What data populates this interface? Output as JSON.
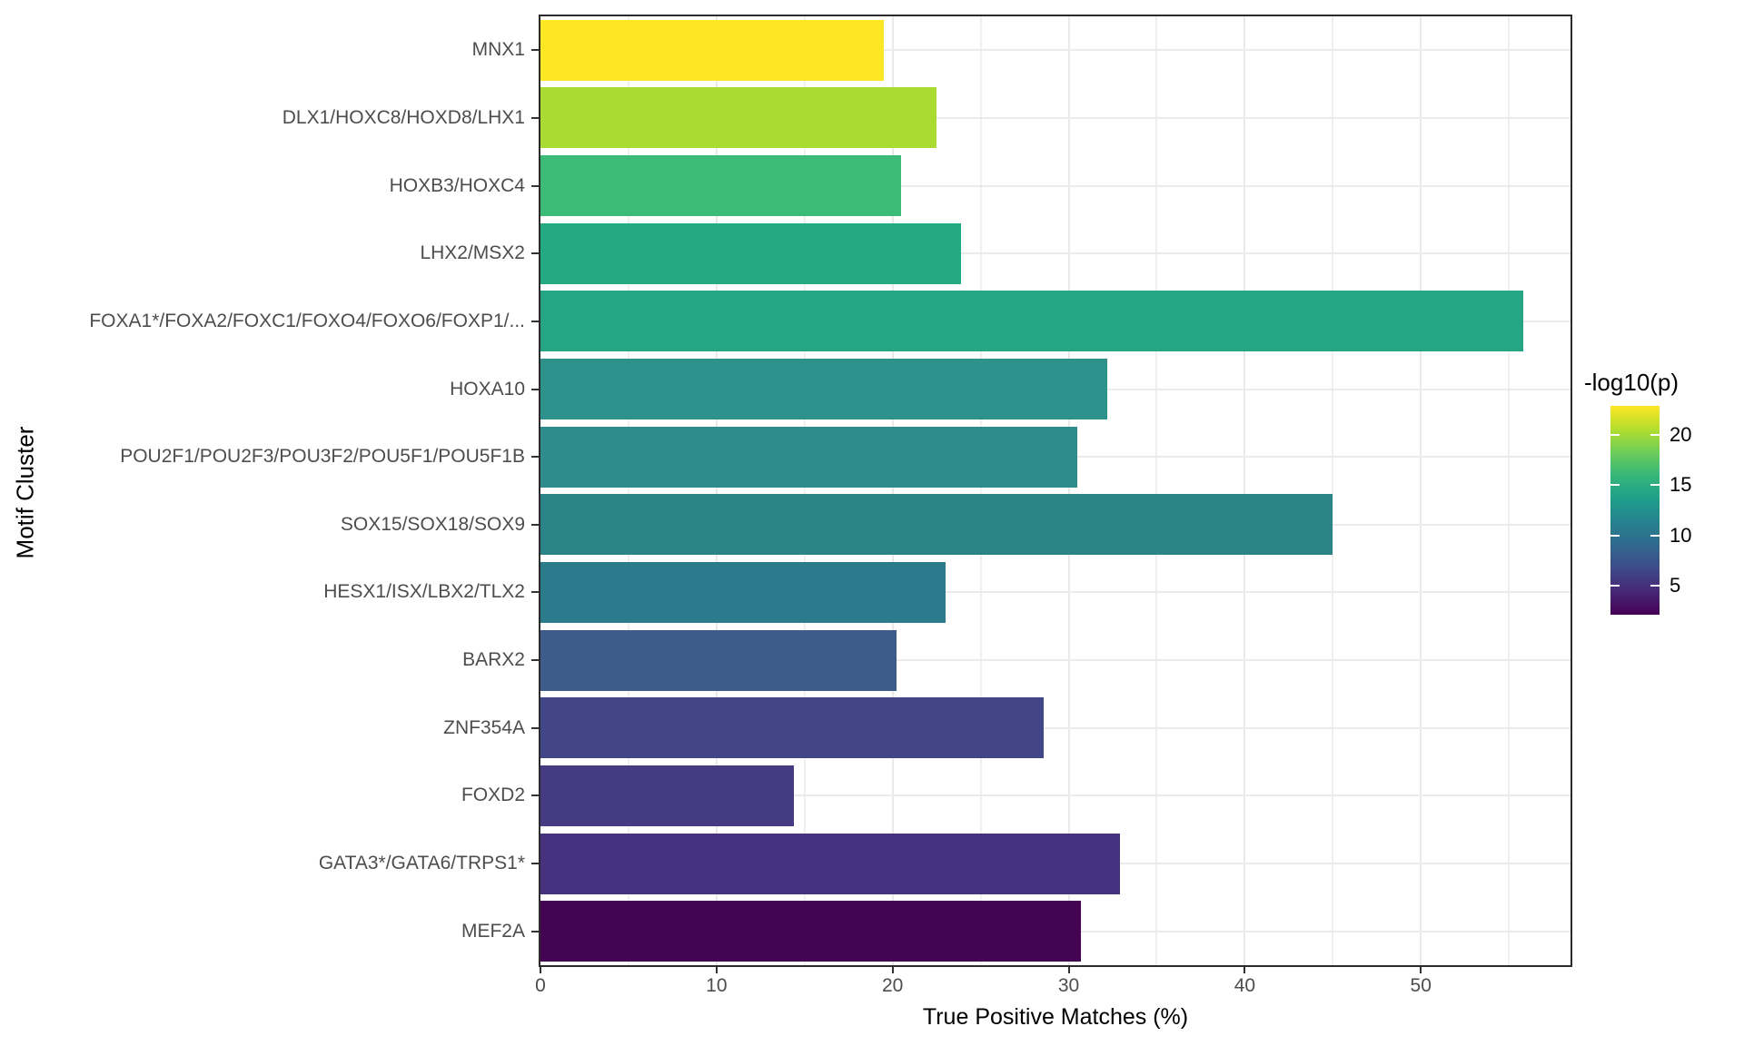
{
  "chart_data": {
    "type": "bar",
    "orientation": "horizontal",
    "title": "",
    "xlabel": "True Positive Matches (%)",
    "ylabel": "Motif Cluster",
    "xlim": [
      0,
      58.5
    ],
    "x_ticks": [
      0,
      10,
      20,
      30,
      40,
      50
    ],
    "x_grid_major": [
      10,
      20,
      30,
      40,
      50
    ],
    "x_grid_minor": [
      5,
      15,
      25,
      35,
      45,
      55
    ],
    "grid": "light gray vertical major+minor, horizontal at category centers",
    "legend_position": "right",
    "categories": [
      "MNX1",
      "DLX1/HOXC8/HOXD8/LHX1",
      "HOXB3/HOXC4",
      "LHX2/MSX2",
      "FOXA1*/FOXA2/FOXC1/FOXO4/FOXO6/FOXP1/...",
      "HOXA10",
      "POU2F1/POU2F3/POU3F2/POU5F1/POU5F1B",
      "SOX15/SOX18/SOX9",
      "HESX1/ISX/LBX2/TLX2",
      "BARX2",
      "ZNF354A",
      "FOXD2",
      "GATA3*/GATA6/TRPS1*",
      "MEF2A"
    ],
    "values": [
      19.5,
      22.5,
      20.5,
      23.9,
      55.8,
      32.2,
      30.5,
      45.0,
      23.0,
      20.2,
      28.6,
      14.4,
      32.9,
      30.7
    ],
    "bar_colors": [
      "#FDE725",
      "#A9DB33",
      "#3BBB75",
      "#24AA83",
      "#25A584",
      "#2D918C",
      "#2E8C8D",
      "#2A8386",
      "#2C7B8C",
      "#3D5C8A",
      "#424586",
      "#453B82",
      "#46327E",
      "#430553"
    ],
    "color_metric": "-log10(p)",
    "log10p_estimates": [
      23,
      20,
      16,
      15,
      14.5,
      13,
      12.5,
      11.8,
      11,
      8.5,
      6.8,
      6,
      5,
      2.2
    ],
    "legend": {
      "title": "-log10(p)",
      "ticks": [
        20,
        15,
        10,
        5
      ],
      "range_bottom_top": [
        2.1,
        22.9
      ],
      "gradient_top_to_bottom": [
        "#FDE725",
        "#B4DE2C",
        "#6DCD59",
        "#35B779",
        "#1F9E89",
        "#26828E",
        "#31688E",
        "#3E4A89",
        "#482878",
        "#440154"
      ]
    }
  },
  "theme": {
    "axis_text_color": "#4D4D4D",
    "axis_title_color": "#000000",
    "panel_border_color": "#2B2B2B",
    "grid_major_color": "#E9E9E9",
    "grid_minor_color": "#F0F0F0",
    "background": "#FFFFFF"
  }
}
